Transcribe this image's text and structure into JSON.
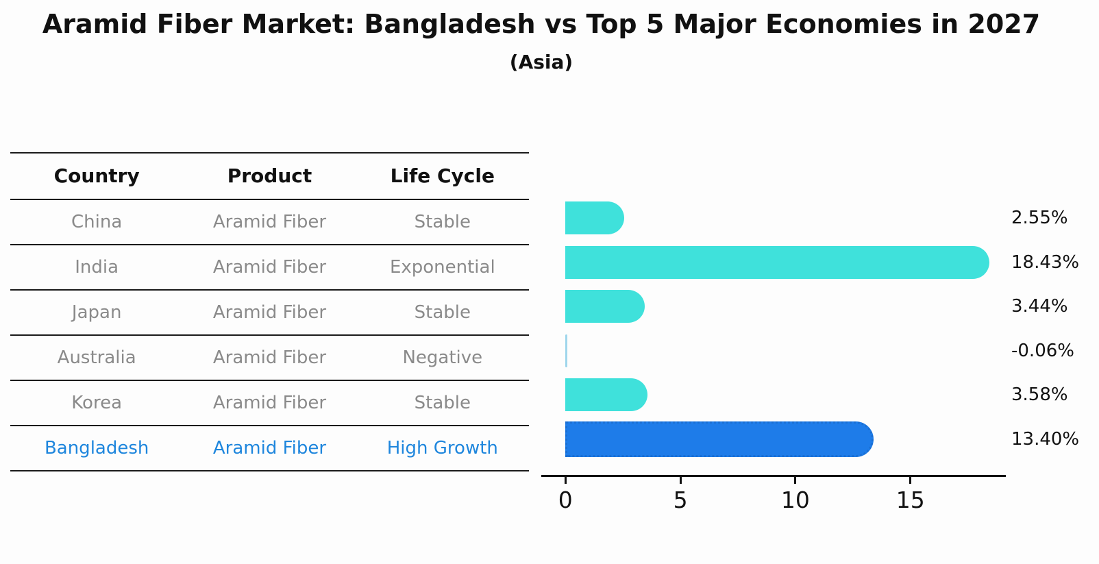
{
  "title": "Aramid Fiber Market: Bangladesh vs Top 5 Major Economies in 2027",
  "subtitle": "(Asia)",
  "table": {
    "headers": [
      "Country",
      "Product",
      "Life Cycle"
    ],
    "rows": [
      {
        "country": "China",
        "product": "Aramid Fiber",
        "life_cycle": "Stable",
        "highlight": false
      },
      {
        "country": "India",
        "product": "Aramid Fiber",
        "life_cycle": "Exponential",
        "highlight": false
      },
      {
        "country": "Japan",
        "product": "Aramid Fiber",
        "life_cycle": "Stable",
        "highlight": false
      },
      {
        "country": "Australia",
        "product": "Aramid Fiber",
        "life_cycle": "Negative",
        "highlight": false
      },
      {
        "country": "Korea",
        "product": "Aramid Fiber",
        "life_cycle": "Stable",
        "highlight": false
      },
      {
        "country": "Bangladesh",
        "product": "Aramid Fiber",
        "life_cycle": "High Growth",
        "highlight": true
      }
    ]
  },
  "chart_data": {
    "type": "bar",
    "orientation": "horizontal",
    "categories": [
      "China",
      "India",
      "Japan",
      "Australia",
      "Korea",
      "Bangladesh"
    ],
    "values": [
      2.55,
      18.43,
      3.44,
      -0.06,
      3.58,
      13.4
    ],
    "value_labels": [
      "2.55%",
      "18.43%",
      "3.44%",
      "-0.06%",
      "3.58%",
      "13.40%"
    ],
    "bar_colors": [
      "#3fe1db",
      "#3fe1db",
      "#3fe1db",
      "#9fd6ec",
      "#3fe1db",
      "#1e7ce9"
    ],
    "bar_styles": [
      "solid",
      "solid",
      "solid",
      "sliver",
      "solid",
      "dotted-border"
    ],
    "xlim": [
      -1.05,
      19.15
    ],
    "xticks": [
      0,
      5,
      10,
      15
    ],
    "grid": false,
    "legend": "none",
    "xlabel": "",
    "ylabel": ""
  },
  "colors": {
    "bar_cyan": "#3fe1db",
    "bar_blue": "#1e7ce9",
    "bar_sliver": "#9fd6ec",
    "highlight_border": "#1a6fd3",
    "highlight_text": "#1e86dd",
    "cell_gray": "#8a8a8a",
    "line_black": "#1a1a1a"
  }
}
